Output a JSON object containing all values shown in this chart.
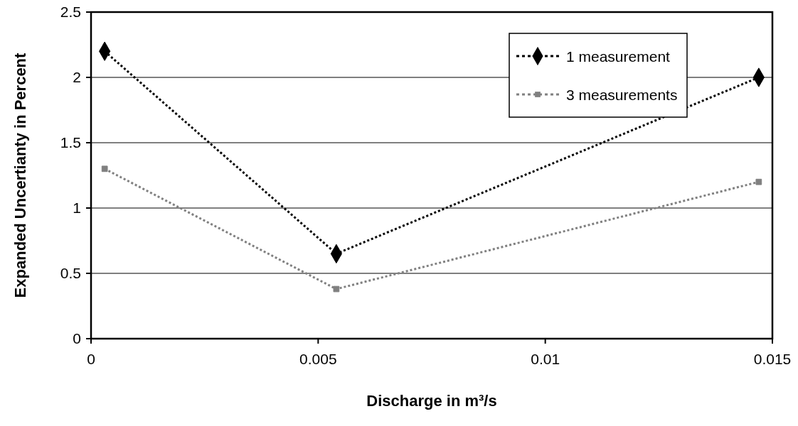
{
  "chart_data": {
    "type": "line",
    "xlabel": "Discharge in m³/s",
    "ylabel": "Expanded Uncertianty in Percent",
    "xlim": [
      0,
      0.015
    ],
    "xticks": [
      0,
      0.005,
      0.01,
      0.015
    ],
    "ylim": [
      0,
      2.5
    ],
    "yticks": [
      0,
      0.5,
      1,
      1.5,
      2,
      2.5
    ],
    "grid": "y",
    "legend": "top right",
    "line_style": "dotted",
    "series": [
      {
        "name": "1 measurement",
        "color": "#000000",
        "marker": "diamond",
        "x": [
          0.0003,
          0.0054,
          0.0147
        ],
        "values": [
          2.2,
          0.65,
          2.0
        ]
      },
      {
        "name": "3 measurements",
        "color": "#808080",
        "marker": "square",
        "x": [
          0.0003,
          0.0054,
          0.0147
        ],
        "values": [
          1.3,
          0.38,
          1.2
        ]
      }
    ]
  }
}
